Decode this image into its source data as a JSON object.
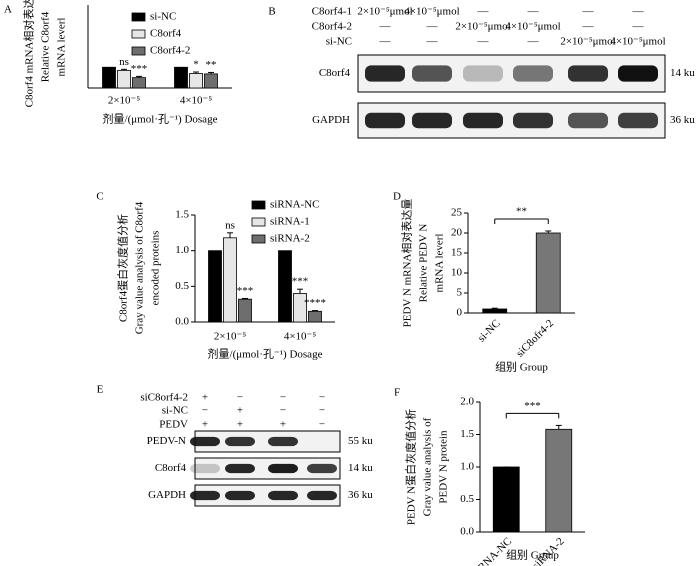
{
  "chart_data": [
    {
      "type": "bar",
      "label": "A",
      "y_label": [
        "C8orf4 mRNA相对表达量",
        "Relative C8orf4",
        "mRNA leverl"
      ],
      "x_label": "剂量/(μmol·孔⁻¹) Dosage",
      "categories": [
        "2×10⁻⁵",
        "4×10⁻⁵"
      ],
      "ylim": [
        0,
        4
      ],
      "series": [
        {
          "name": "si-NC",
          "color": "#000000",
          "values": [
            1,
            1
          ]
        },
        {
          "name": "C8orf4",
          "color": "#e6e6e6",
          "values": [
            0.85,
            0.7
          ],
          "errors": [
            0.05,
            0.07
          ],
          "significance": [
            "ns",
            "*"
          ]
        },
        {
          "name": "C8orf4-2",
          "color": "#6e6e6e",
          "values": [
            0.5,
            0.68
          ],
          "errors": [
            0.06,
            0.07
          ],
          "significance": [
            "***",
            "**"
          ]
        }
      ]
    },
    {
      "type": "bar",
      "label": "C",
      "y_label": [
        "C8orf4蛋白灰度值分析",
        "Gray value analysis of C8orf4",
        "encoded proteins"
      ],
      "x_label": "剂量/(μmol·孔⁻¹) Dosage",
      "categories": [
        "2×10⁻⁵",
        "4×10⁻⁵"
      ],
      "ylim": [
        0,
        1.5
      ],
      "yticks": [
        {
          "value": 0,
          "label": "0.0"
        },
        0.5,
        {
          "value": 1,
          "label": "1.0"
        },
        1.5
      ],
      "series": [
        {
          "name": "siRNA-NC",
          "color": "#000000",
          "values": [
            1,
            1
          ]
        },
        {
          "name": "siRNA-1",
          "color": "#e6e6e6",
          "values": [
            1.18,
            0.4
          ],
          "errors": [
            0.07,
            0.06
          ],
          "significance": [
            "ns",
            "***"
          ]
        },
        {
          "name": "siRNA-2",
          "color": "#6e6e6e",
          "values": [
            0.32,
            0.15
          ],
          "errors": [
            0.01,
            0.01
          ],
          "significance": [
            "***",
            "****"
          ]
        }
      ]
    },
    {
      "type": "bar",
      "label": "D",
      "y_label": [
        "PEDV N mRNA相对表达量",
        "Relative PEDV N",
        "mRNA leverl"
      ],
      "x_label": "组别 Group",
      "categories": [
        "si-NC",
        "siC8ofr4-2"
      ],
      "values": [
        1,
        20
      ],
      "errors": [
        0.2,
        0.5
      ],
      "colors": [
        "#000000",
        "#777777"
      ],
      "significance": "**",
      "ylim": [
        0,
        25
      ],
      "yticks": [
        0,
        5,
        10,
        15,
        20,
        25
      ]
    },
    {
      "type": "bar",
      "label": "F",
      "y_label": [
        "PEDV N蛋白灰度值分析",
        "Gray value analysis of",
        "PEDV N protein"
      ],
      "x_label": "组别 Group",
      "categories": [
        "siRNA-NC",
        "siRNA-2"
      ],
      "values": [
        1,
        1.58
      ],
      "errors": [
        0,
        0.06
      ],
      "colors": [
        "#000000",
        "#777777"
      ],
      "significance": "***",
      "ylim": [
        0,
        2
      ],
      "yticks": [
        {
          "value": 0,
          "label": "0.0"
        },
        0.5,
        {
          "value": 1,
          "label": "1.0"
        },
        1.5,
        {
          "value": 2,
          "label": "2.0"
        }
      ]
    }
  ],
  "blots": [
    {
      "label": "B",
      "conditions": [
        {
          "name": "C8orf4-1",
          "lanes": [
            "2×10⁻⁵μmol",
            "4×10⁻⁵μmol",
            "—",
            "—",
            "—",
            "—"
          ]
        },
        {
          "name": "C8orf4-2",
          "lanes": [
            "—",
            "—",
            "2×10⁻⁵μmol",
            "4×10⁻⁵μmol",
            "—",
            "—"
          ]
        },
        {
          "name": "si-NC",
          "lanes": [
            "—",
            "—",
            "—",
            "—",
            "2×10⁻⁵μmol",
            "4×10⁻⁵μmol"
          ]
        }
      ],
      "bands": [
        {
          "name": "C8orf4",
          "size": "14 ku"
        },
        {
          "name": "GAPDH",
          "size": "36 ku"
        }
      ]
    },
    {
      "label": "E",
      "conditions": [
        {
          "name": "siC8orf4-2",
          "lanes": [
            "+",
            "−",
            "−",
            "−"
          ]
        },
        {
          "name": "si-NC",
          "lanes": [
            "−",
            "+",
            "−",
            "−"
          ]
        },
        {
          "name": "PEDV",
          "lanes": [
            "+",
            "+",
            "+",
            "−"
          ]
        }
      ],
      "bands": [
        {
          "name": "PEDV-N",
          "size": "55 ku"
        },
        {
          "name": "C8orf4",
          "size": "14 ku"
        },
        {
          "name": "GAPDH",
          "size": "36 ku"
        }
      ]
    }
  ]
}
